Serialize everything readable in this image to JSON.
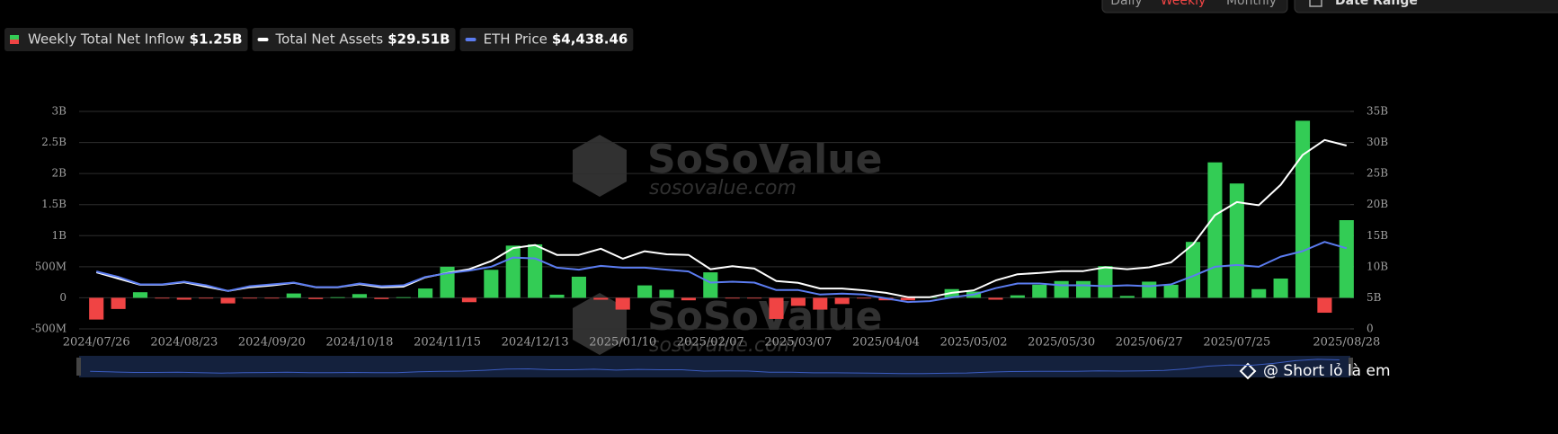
{
  "tabs": [
    "Daily",
    "Weekly",
    "Monthly"
  ],
  "active_tab": 1,
  "date_range": "Date Range",
  "watermark": {
    "brand": "SoSoValue",
    "url": "sosovalue.com"
  },
  "footer": "@ Short lỏ là em",
  "chart_data": {
    "type": "combo",
    "categories": [
      "2024/07/26",
      null,
      null,
      null,
      "2024/08/23",
      null,
      null,
      null,
      "2024/09/20",
      null,
      null,
      null,
      "2024/10/18",
      null,
      null,
      null,
      "2024/11/15",
      null,
      null,
      null,
      "2024/12/13",
      null,
      null,
      null,
      "2025/01/10",
      null,
      null,
      null,
      "2025/02/07",
      null,
      null,
      null,
      "2025/03/07",
      null,
      null,
      null,
      "2025/04/04",
      null,
      null,
      null,
      "2025/05/02",
      null,
      null,
      null,
      "2025/05/30",
      null,
      null,
      null,
      "2025/06/27",
      null,
      null,
      null,
      "2025/07/25",
      null,
      null,
      null,
      null,
      "2025/08/28"
    ],
    "series": [
      {
        "name": "Weekly Total Net Inflow",
        "legend_value": "$1.25B",
        "type": "bar",
        "axis": "y",
        "color": "#33cc55",
        "negative_color": "#f04444",
        "values": [
          -0.35,
          -0.18,
          0.09,
          -0.01,
          -0.03,
          -0.01,
          -0.09,
          -0.01,
          -0.01,
          0.07,
          -0.02,
          0.01,
          0.06,
          -0.02,
          0.01,
          0.15,
          0.5,
          -0.07,
          0.45,
          0.84,
          0.86,
          0.05,
          0.34,
          -0.03,
          -0.19,
          0.2,
          0.13,
          -0.04,
          0.41,
          -0.01,
          -0.01,
          -0.34,
          -0.13,
          -0.19,
          -0.1,
          -0.01,
          -0.04,
          -0.04,
          0.01,
          0.14,
          0.1,
          -0.03,
          0.04,
          0.21,
          0.27,
          0.27,
          0.51,
          0.03,
          0.26,
          0.21,
          0.9,
          2.18,
          1.84,
          0.14,
          0.31,
          2.85,
          -0.24,
          1.25
        ]
      },
      {
        "name": "Total Net Assets",
        "legend_value": "$29.51B",
        "type": "line",
        "axis": "y2",
        "color": "#ffffff",
        "values": [
          9.1,
          8.1,
          7.1,
          7.1,
          7.5,
          6.8,
          6.1,
          6.7,
          7.0,
          7.4,
          6.7,
          6.7,
          7.2,
          6.7,
          6.8,
          8.3,
          9.0,
          9.6,
          10.9,
          13.0,
          13.5,
          11.9,
          11.9,
          12.9,
          11.3,
          12.5,
          12.0,
          11.9,
          9.6,
          10.1,
          9.7,
          7.7,
          7.4,
          6.5,
          6.5,
          6.2,
          5.8,
          5.1,
          5.1,
          5.8,
          6.2,
          7.8,
          8.8,
          9.0,
          9.3,
          9.3,
          9.9,
          9.6,
          9.9,
          10.7,
          13.6,
          18.3,
          20.4,
          19.9,
          23.2,
          28.0,
          30.4,
          29.51
        ]
      },
      {
        "name": "ETH Price",
        "legend_value": "$4,438.46",
        "type": "line",
        "axis": "y3",
        "color": "#5b7cf0",
        "values": [
          3160,
          2860,
          2450,
          2450,
          2600,
          2400,
          2090,
          2350,
          2450,
          2550,
          2300,
          2300,
          2500,
          2350,
          2400,
          2860,
          3060,
          3210,
          3420,
          3930,
          3880,
          3370,
          3260,
          3470,
          3370,
          3370,
          3260,
          3160,
          2550,
          2600,
          2550,
          2140,
          2140,
          1890,
          1940,
          1890,
          1680,
          1480,
          1530,
          1730,
          1890,
          2240,
          2500,
          2500,
          2400,
          2400,
          2350,
          2400,
          2350,
          2450,
          2910,
          3420,
          3520,
          3420,
          3980,
          4280,
          4790,
          4438.46
        ]
      }
    ],
    "ylim": [
      -0.5,
      3
    ],
    "yticks": [
      {
        "value": -0.5,
        "label": "-500M"
      },
      0,
      {
        "value": 0.5,
        "label": "500M"
      },
      {
        "value": 1,
        "label": "1B"
      },
      {
        "value": 1.5,
        "label": "1.5B"
      },
      {
        "value": 2,
        "label": "2B"
      },
      {
        "value": 2.5,
        "label": "2.5B"
      },
      {
        "value": 3,
        "label": "3B"
      }
    ],
    "y2lim": [
      0,
      35
    ],
    "y2ticks": [
      0,
      {
        "value": 5,
        "label": "5B"
      },
      {
        "value": 10,
        "label": "10B"
      },
      {
        "value": 15,
        "label": "15B"
      },
      {
        "value": 20,
        "label": "20B"
      },
      {
        "value": 25,
        "label": "25B"
      },
      {
        "value": 30,
        "label": "30B"
      },
      {
        "value": 35,
        "label": "35B"
      }
    ],
    "grid": true
  }
}
